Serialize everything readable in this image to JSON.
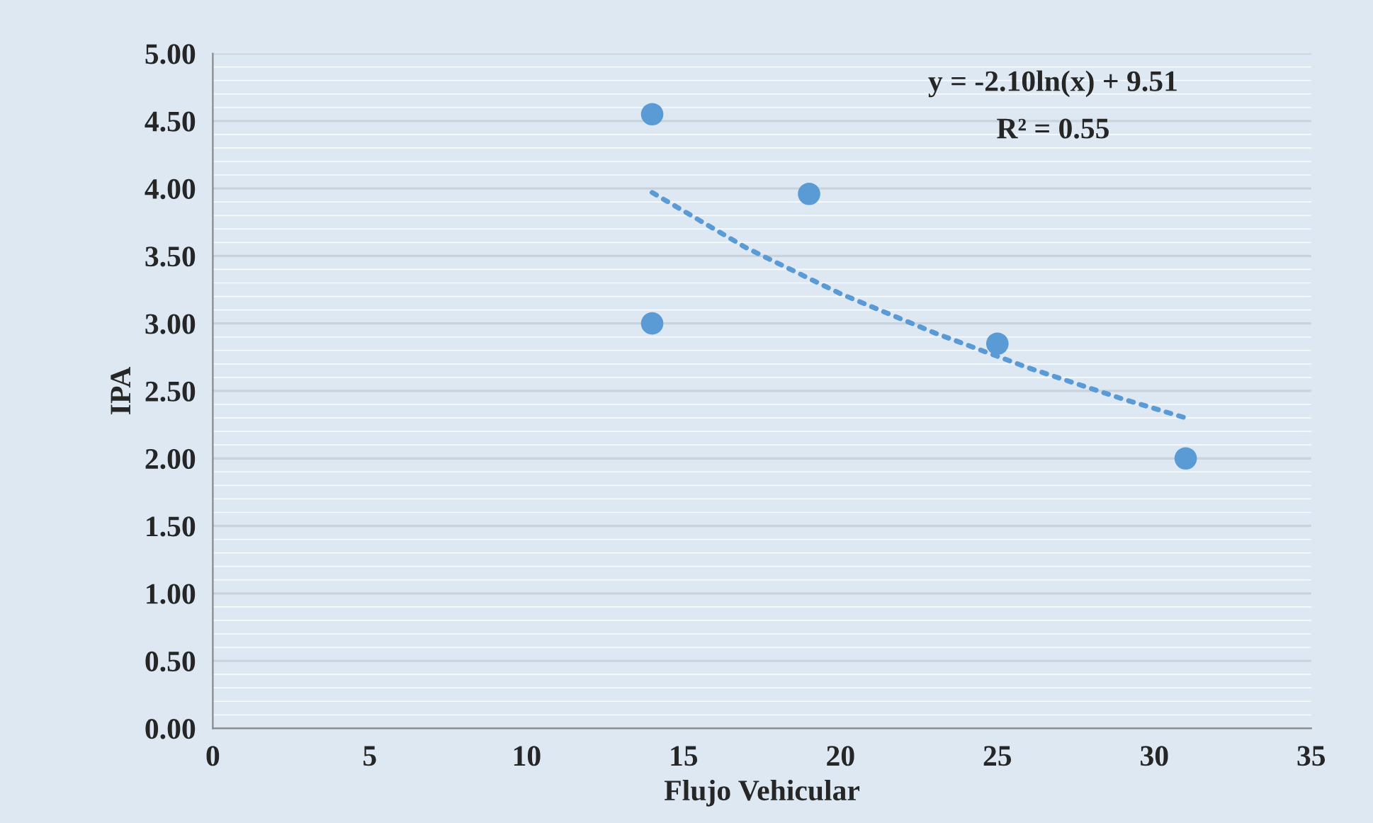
{
  "chart_data": {
    "type": "scatter",
    "xlabel": "Flujo Vehicular",
    "ylabel": "IPA",
    "series": [
      {
        "color": "#5b9bd5",
        "x": [
          14,
          14,
          19,
          25,
          31
        ],
        "values": [
          4.55,
          3.0,
          3.96,
          2.85,
          2.0
        ],
        "marker": "circle"
      },
      {
        "type": "line",
        "color": "#5b9bd5",
        "x": [
          14,
          17,
          20,
          23,
          26,
          29,
          31
        ],
        "values": [
          3.97,
          3.56,
          3.22,
          2.93,
          2.67,
          2.44,
          2.3
        ],
        "line_style": "dotted",
        "marker": "none"
      }
    ],
    "annotations": [
      "y = -2.10ln(x) + 9.51",
      "R² = 0.55"
    ],
    "xlim": [
      0,
      35
    ],
    "xticks": [
      0,
      5,
      10,
      15,
      20,
      25,
      30,
      35
    ],
    "ylim": [
      0,
      5
    ],
    "yticks": [
      {
        "value": 0,
        "label": "0.00"
      },
      {
        "value": 0.5,
        "label": "0.50"
      },
      {
        "value": 1,
        "label": "1.00"
      },
      {
        "value": 1.5,
        "label": "1.50"
      },
      {
        "value": 2,
        "label": "2.00"
      },
      {
        "value": 2.5,
        "label": "2.50"
      },
      {
        "value": 3,
        "label": "3.00"
      },
      {
        "value": 3.5,
        "label": "3.50"
      },
      {
        "value": 4,
        "label": "4.00"
      },
      {
        "value": 4.5,
        "label": "4.50"
      },
      {
        "value": 5,
        "label": "5.00"
      }
    ],
    "grid": "y",
    "legend": false
  }
}
